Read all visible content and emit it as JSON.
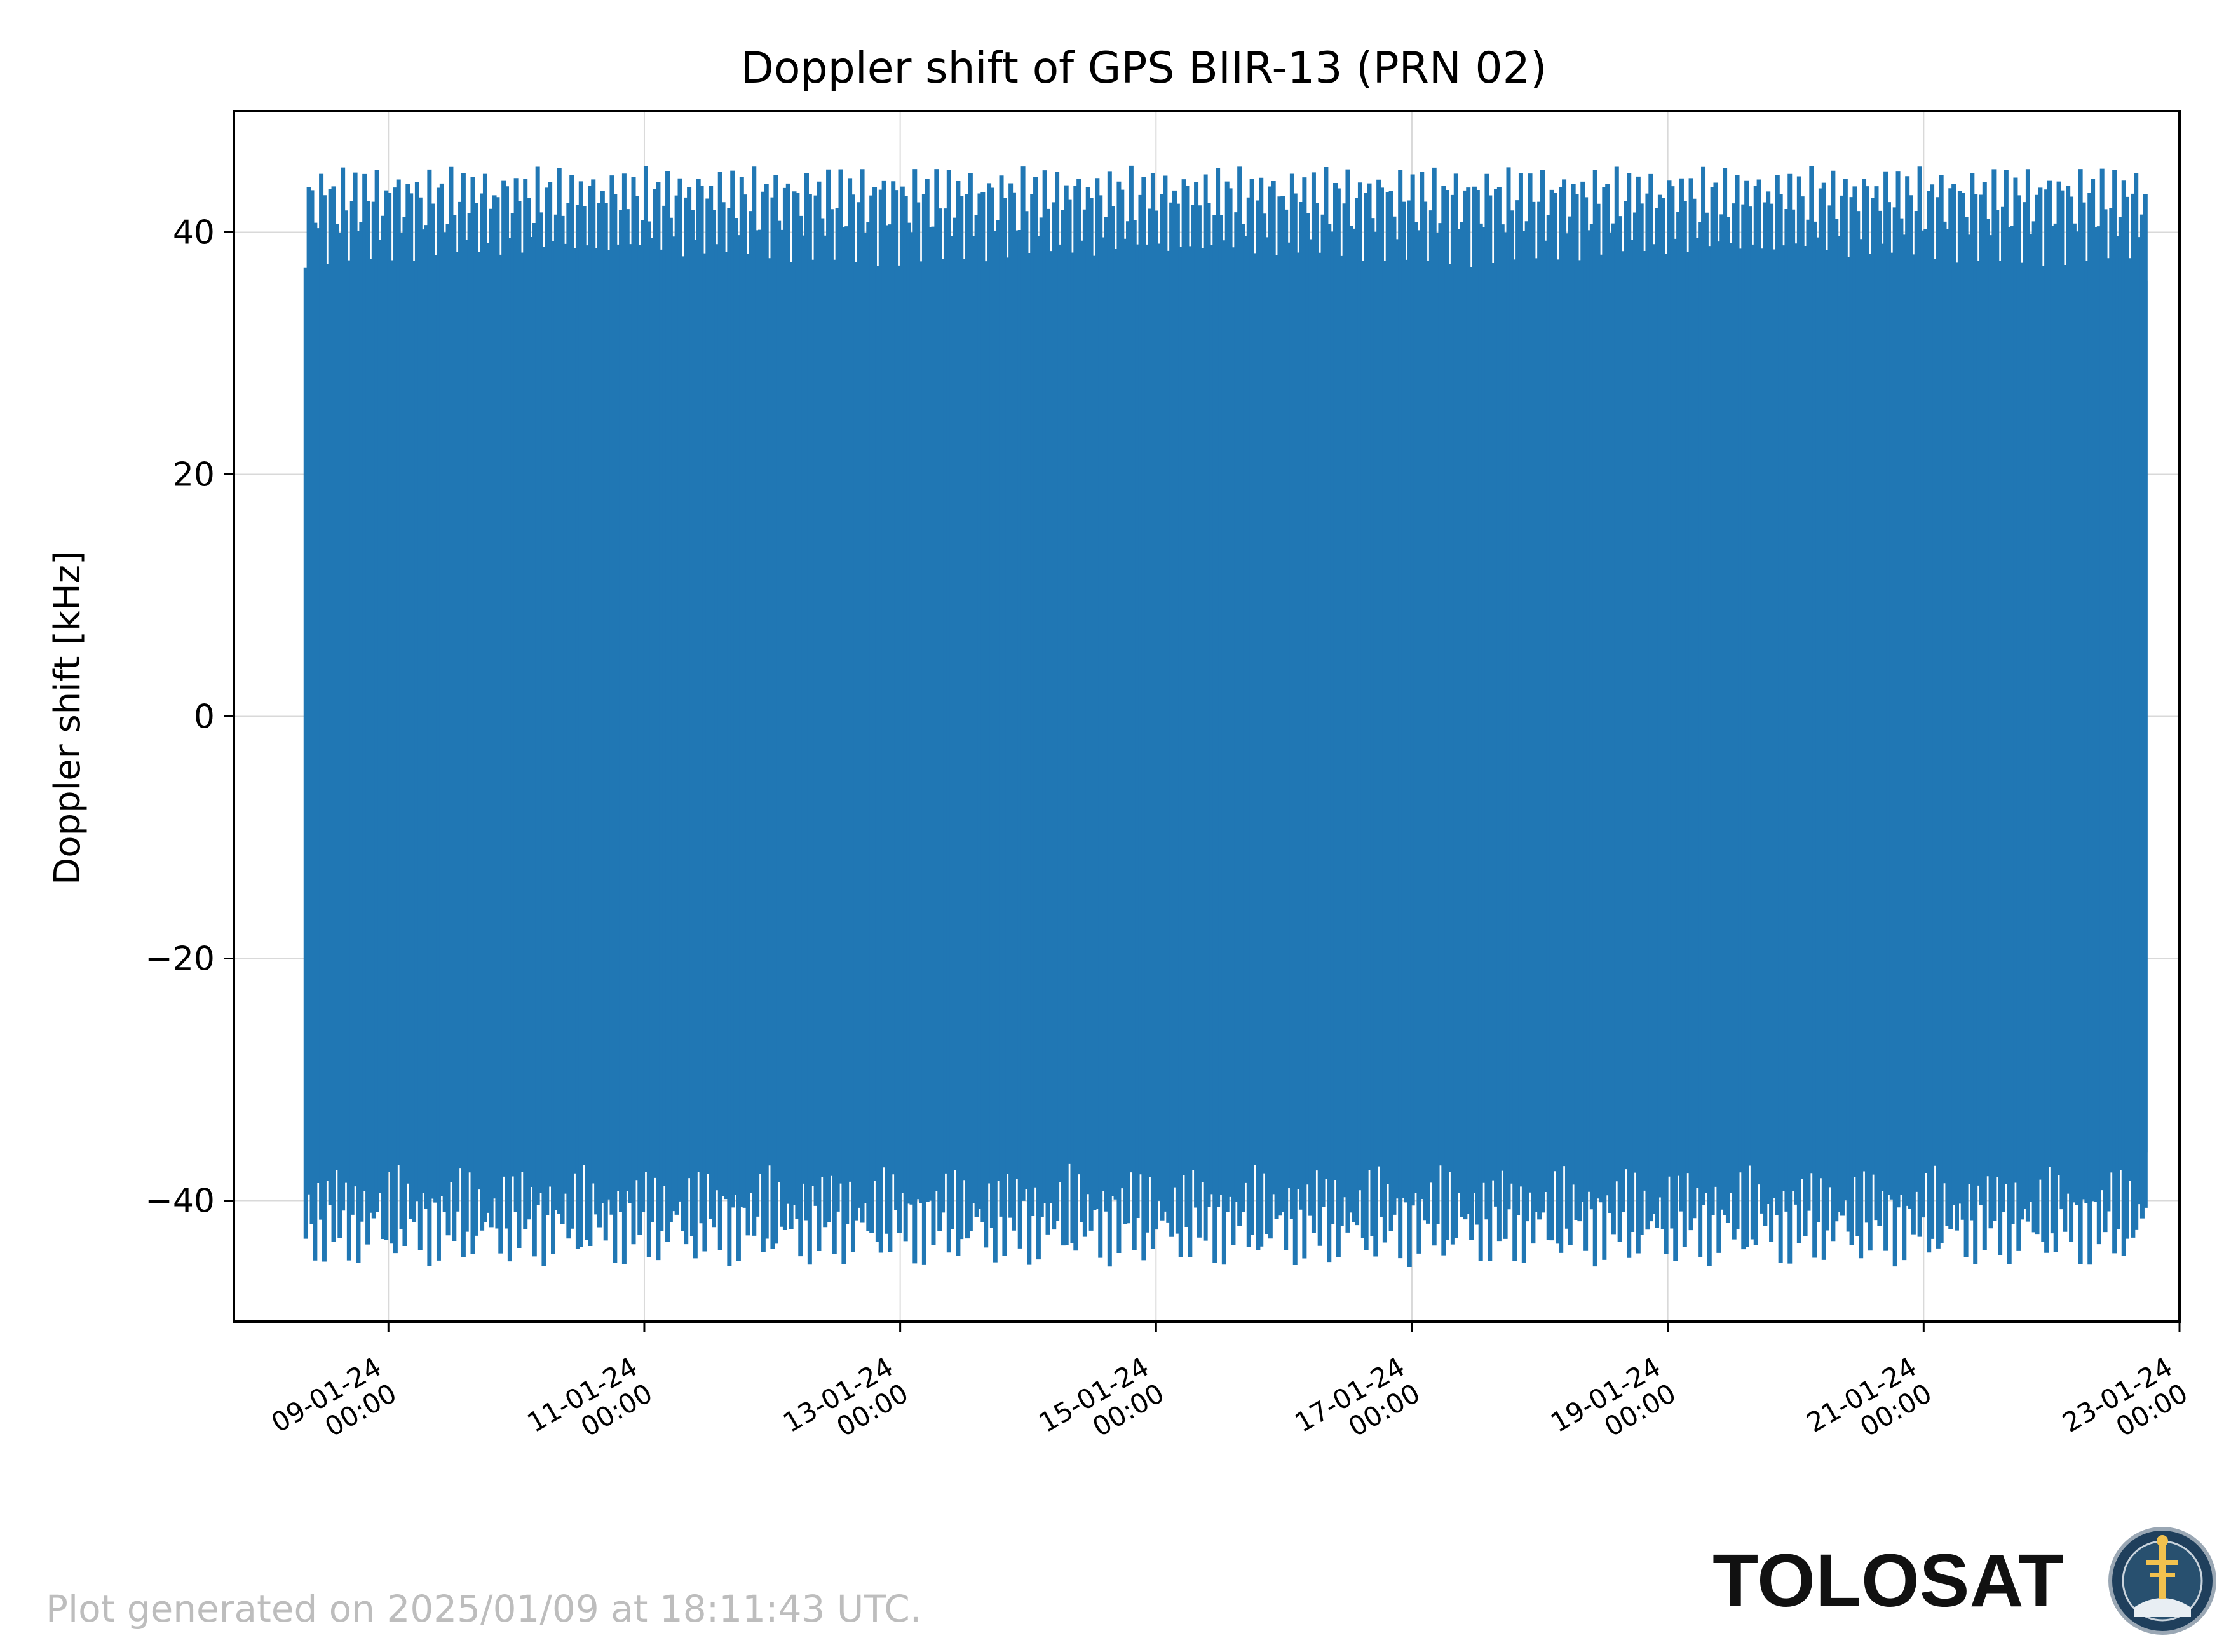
{
  "chart_data": {
    "type": "line",
    "title": "Doppler shift of GPS BIIR-13 (PRN 02)",
    "xlabel": "",
    "ylabel": "Doppler shift [kHz]",
    "ylim": [
      -50,
      50
    ],
    "xlim": [
      "2024-01-07T19:00",
      "2024-01-23T00:00"
    ],
    "yticks": [
      -40,
      -20,
      0,
      20,
      40
    ],
    "ytick_labels": [
      "−40",
      "−20",
      "0",
      "20",
      "40"
    ],
    "xticks": [
      {
        "date": "2024-01-09T00:00",
        "line1": "09-01-24",
        "line2": "00:00"
      },
      {
        "date": "2024-01-11T00:00",
        "line1": "11-01-24",
        "line2": "00:00"
      },
      {
        "date": "2024-01-13T00:00",
        "line1": "13-01-24",
        "line2": "00:00"
      },
      {
        "date": "2024-01-15T00:00",
        "line1": "15-01-24",
        "line2": "00:00"
      },
      {
        "date": "2024-01-17T00:00",
        "line1": "17-01-24",
        "line2": "00:00"
      },
      {
        "date": "2024-01-19T00:00",
        "line1": "19-01-24",
        "line2": "00:00"
      },
      {
        "date": "2024-01-21T00:00",
        "line1": "21-01-24",
        "line2": "00:00"
      },
      {
        "date": "2024-01-23T00:00",
        "line1": "23-01-24",
        "line2": "00:00"
      }
    ],
    "grid": true,
    "series": [
      {
        "color": "#2077b4",
        "x_start": "2024-01-08T08:30",
        "x_end": "2024-01-22T18:00",
        "period_hours": 12,
        "y_max_range": [
          43,
          45.5
        ],
        "y_min_range": [
          -41,
          -45.5
        ],
        "dense_band": [
          -36,
          36
        ]
      }
    ]
  },
  "footer": {
    "generated": "Plot generated on 2025/01/09 at 18:11:43 UTC.",
    "brand": "TOLOSAT",
    "logo_ring_text": "ASTRE · CC · SUPAERO · TOLOSAT"
  }
}
